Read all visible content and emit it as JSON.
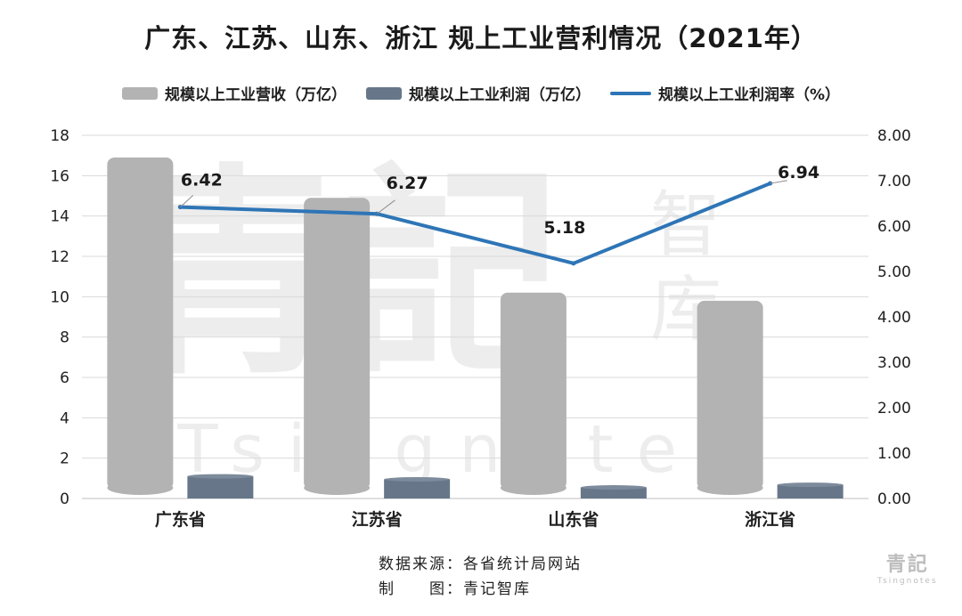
{
  "title": "广东、江苏、山东、浙江 规上工业营利情况（2021年）",
  "legend": [
    {
      "label": "规模以上工业营收（万亿）",
      "kind": "box",
      "color": "#b3b3b3"
    },
    {
      "label": "规模以上工业利润（万亿）",
      "kind": "box",
      "color": "#677689"
    },
    {
      "label": "规模以上工业利润率（%）",
      "kind": "line",
      "color": "#2e75b6"
    }
  ],
  "watermark": {
    "big": "青記",
    "side": "智库",
    "latin": "Tsingnotes"
  },
  "footer": {
    "source": "数据来源：各省统计局网站",
    "maker": "制　　图：青记智库"
  },
  "colors": {
    "revenue": "#b3b3b3",
    "profit": "#677689",
    "rate_line": "#2e75b6",
    "axis_text": "#1f1f1f",
    "grid": "#d9d9d9"
  },
  "chart_data": {
    "type": "bar",
    "title": "广东、江苏、山东、浙江 规上工业营利情况（2021年）",
    "categories": [
      "广东省",
      "江苏省",
      "山东省",
      "浙江省"
    ],
    "series": [
      {
        "name": "规模以上工业营收（万亿）",
        "type": "bar",
        "axis": "left",
        "values": [
          16.9,
          14.9,
          10.2,
          9.8
        ]
      },
      {
        "name": "规模以上工业利润（万亿）",
        "type": "bar",
        "axis": "left",
        "values": [
          1.1,
          0.95,
          0.55,
          0.68
        ]
      },
      {
        "name": "规模以上工业利润率（%）",
        "type": "line",
        "axis": "right",
        "values": [
          6.42,
          6.27,
          5.18,
          6.94
        ],
        "labels": [
          "6.42",
          "6.27",
          "5.18",
          "6.94"
        ]
      }
    ],
    "y_left": {
      "min": 0,
      "max": 18,
      "ticks": [
        "0",
        "2",
        "4",
        "6",
        "8",
        "10",
        "12",
        "14",
        "16",
        "18"
      ]
    },
    "y_right": {
      "min": 0,
      "max": 8,
      "ticks": [
        "0.00",
        "1.00",
        "2.00",
        "3.00",
        "4.00",
        "5.00",
        "6.00",
        "7.00",
        "8.00"
      ]
    },
    "grid": true,
    "legend_position": "top"
  }
}
